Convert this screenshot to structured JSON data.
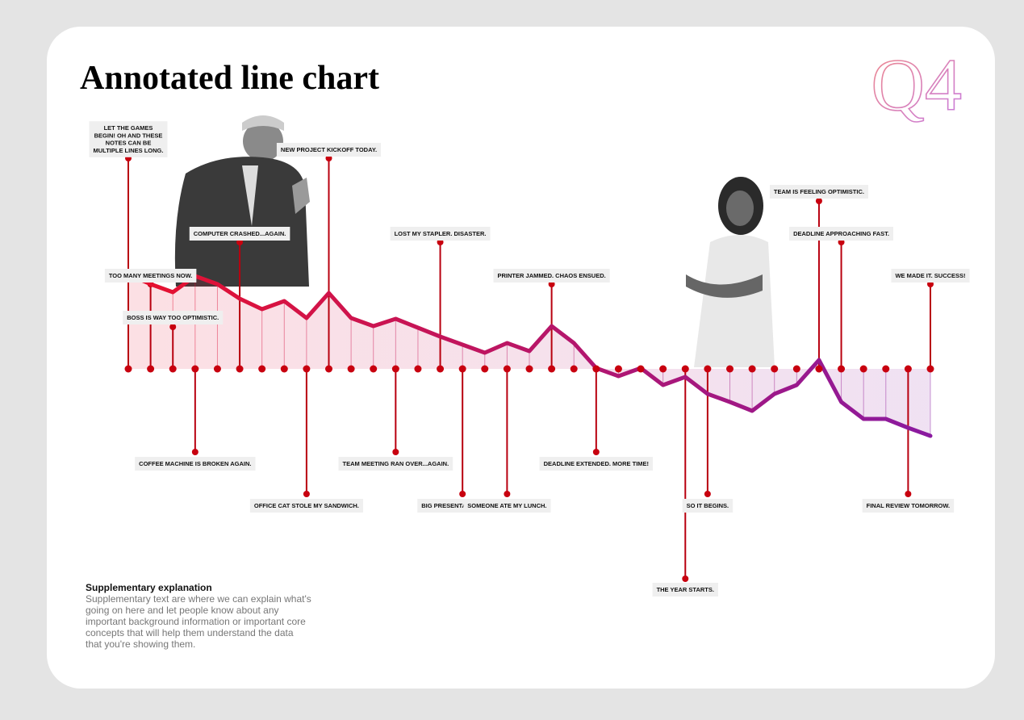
{
  "title": "Annotated line chart",
  "badge": "Q4",
  "chart_data": {
    "type": "line",
    "values": [
      11.7,
      10.5,
      9.5,
      11.5,
      10.5,
      8.7,
      7.4,
      8.4,
      6.3,
      9.4,
      6.3,
      5.3,
      6.2,
      5.1,
      4.0,
      3.0,
      2.0,
      3.2,
      2.2,
      5.3,
      3.2,
      0.1,
      -0.9,
      0.1,
      -2.0,
      -1.0,
      -3.1,
      -4.1,
      -5.2,
      -3.1,
      -2.0,
      1.1,
      -4.1,
      -6.2,
      -6.2,
      -7.3,
      -8.3
    ],
    "ylim": [
      -12,
      12
    ],
    "colors": [
      "#e8112d",
      "#8a1aa0"
    ],
    "annotations": [
      {
        "index": 0,
        "text": "LET THE GAMES BEGIN! OH AND THESE NOTES CAN BE MULTIPLE LINES LONG."
      },
      {
        "index": 1,
        "text": "TOO MANY MEETINGS NOW."
      },
      {
        "index": 2,
        "text": "BOSS IS WAY TOO OPTIMISTIC."
      },
      {
        "index": 3,
        "text": "COFFEE MACHINE IS BROKEN AGAIN."
      },
      {
        "index": 5,
        "text": "COMPUTER CRASHED...AGAIN."
      },
      {
        "index": 8,
        "text": "OFFICE CAT STOLE MY SANDWICH."
      },
      {
        "index": 9,
        "text": "NEW PROJECT KICKOFF TODAY."
      },
      {
        "index": 12,
        "text": "TEAM MEETING RAN OVER...AGAIN."
      },
      {
        "index": 14,
        "text": "LOST MY STAPLER. DISASTER."
      },
      {
        "index": 15,
        "text": "BIG PRESENTATION TODAY."
      },
      {
        "index": 17,
        "text": "SOMEONE ATE MY LUNCH."
      },
      {
        "index": 19,
        "text": "PRINTER JAMMED. CHAOS ENSUED."
      },
      {
        "index": 21,
        "text": "DEADLINE EXTENDED. MORE TIME!"
      },
      {
        "index": 25,
        "text": "THE YEAR STARTS."
      },
      {
        "index": 26,
        "text": "SO IT BEGINS."
      },
      {
        "index": 31,
        "text": "TEAM IS FEELING OPTIMISTIC."
      },
      {
        "index": 32,
        "text": "DEADLINE APPROACHING FAST."
      },
      {
        "index": 35,
        "text": "FINAL REVIEW TOMORROW."
      },
      {
        "index": 36,
        "text": "WE MADE IT. SUCCESS!"
      }
    ]
  },
  "note": {
    "title": "Supplementary explanation",
    "text": "Supplementary text are where we can explain what's going on here and let people know about any important background information or important core concepts that will help them understand the data that you're showing them."
  }
}
